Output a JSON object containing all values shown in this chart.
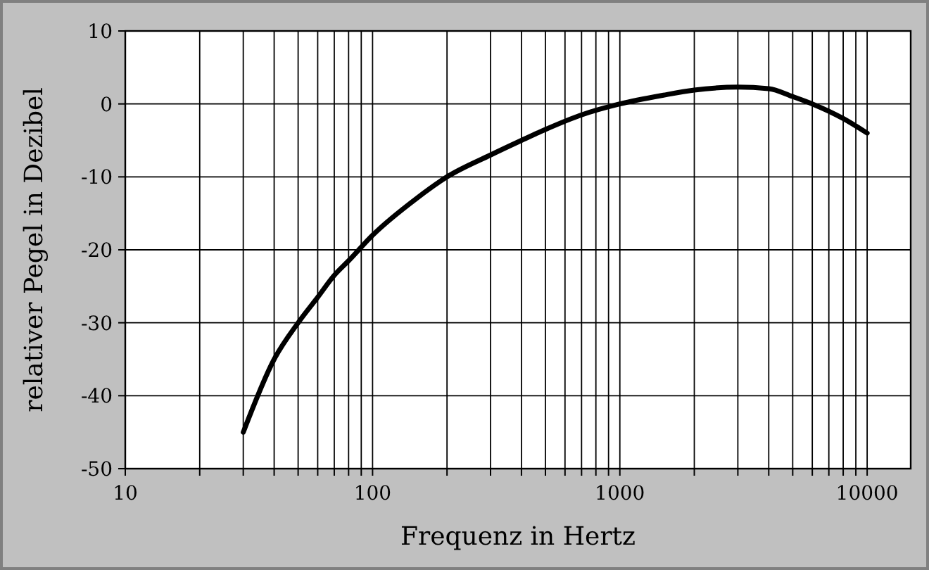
{
  "chart_data": {
    "type": "line",
    "xlabel": "Frequenz in Hertz",
    "ylabel": "relativer Pegel in Dezibel",
    "log": "x",
    "grid": true,
    "xlim": [
      10,
      15000
    ],
    "ylim": [
      -50,
      10
    ],
    "yticks": [
      -50,
      -40,
      -30,
      -20,
      -10,
      0,
      10
    ],
    "xticks": [
      10,
      {
        "value": 20,
        "label": null
      },
      {
        "value": 30,
        "label": null
      },
      {
        "value": 40,
        "label": null
      },
      {
        "value": 50,
        "label": null
      },
      {
        "value": 60,
        "label": null
      },
      {
        "value": 70,
        "label": null
      },
      {
        "value": 80,
        "label": null
      },
      {
        "value": 90,
        "label": null
      },
      100,
      {
        "value": 200,
        "label": null
      },
      {
        "value": 300,
        "label": null
      },
      {
        "value": 400,
        "label": null
      },
      {
        "value": 500,
        "label": null
      },
      {
        "value": 600,
        "label": null
      },
      {
        "value": 700,
        "label": null
      },
      {
        "value": 800,
        "label": null
      },
      {
        "value": 900,
        "label": null
      },
      1000,
      {
        "value": 2000,
        "label": null
      },
      {
        "value": 3000,
        "label": null
      },
      {
        "value": 4000,
        "label": null
      },
      {
        "value": 5000,
        "label": null
      },
      {
        "value": 6000,
        "label": null
      },
      {
        "value": 7000,
        "label": null
      },
      {
        "value": 8000,
        "label": null
      },
      {
        "value": 9000,
        "label": null
      },
      10000
    ],
    "x": [
      30,
      40,
      50,
      60,
      70,
      80,
      100,
      150,
      200,
      300,
      400,
      500,
      700,
      1000,
      1500,
      2000,
      3000,
      4000,
      5000,
      6000,
      8000,
      10000
    ],
    "series": [
      {
        "color": "#000000",
        "values": [
          -45,
          -35,
          -30,
          -26.5,
          -23.5,
          -21.5,
          -18,
          -13,
          -10,
          -7,
          -5,
          -3.5,
          -1.5,
          0,
          1.2,
          1.9,
          2.3,
          2.1,
          1,
          0,
          -2,
          -4
        ]
      }
    ]
  }
}
